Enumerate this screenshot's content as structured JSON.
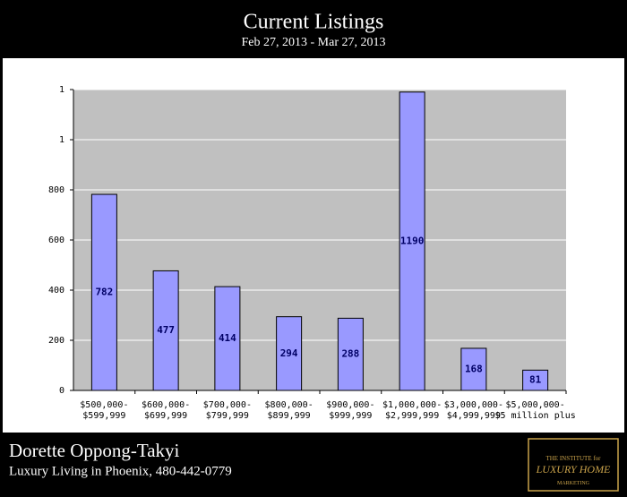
{
  "chart_data": {
    "type": "bar",
    "title": "Current Listings",
    "subtitle": "Feb 27, 2013 - Mar 27, 2013",
    "categories": [
      [
        "$500,000-",
        "$599,999"
      ],
      [
        "$600,000-",
        "$699,999"
      ],
      [
        "$700,000-",
        "$799,999"
      ],
      [
        "$800,000-",
        "$899,999"
      ],
      [
        "$900,000-",
        "$999,999"
      ],
      [
        "$1,000,000-",
        "$2,999,999"
      ],
      [
        "$3,000,000-",
        "$4,999,999"
      ],
      [
        "$5,000,000-",
        "$5 million plus"
      ]
    ],
    "values": [
      782,
      477,
      414,
      294,
      288,
      1190,
      168,
      81
    ],
    "color": "#9999ff",
    "ylim": [
      0,
      1200
    ],
    "yticks": [
      0,
      200,
      400,
      600,
      800,
      {
        "value": 1000,
        "label": "1"
      },
      {
        "value": 1200,
        "label": "1"
      }
    ],
    "grid": true
  },
  "footer": {
    "name": "Dorette Oppong-Takyi",
    "tagline": "Luxury Living in Phoenix, 480-442-0779",
    "logo": [
      "THE INSTITUTE for",
      "LUXURY HOME",
      "MARKETING"
    ]
  }
}
